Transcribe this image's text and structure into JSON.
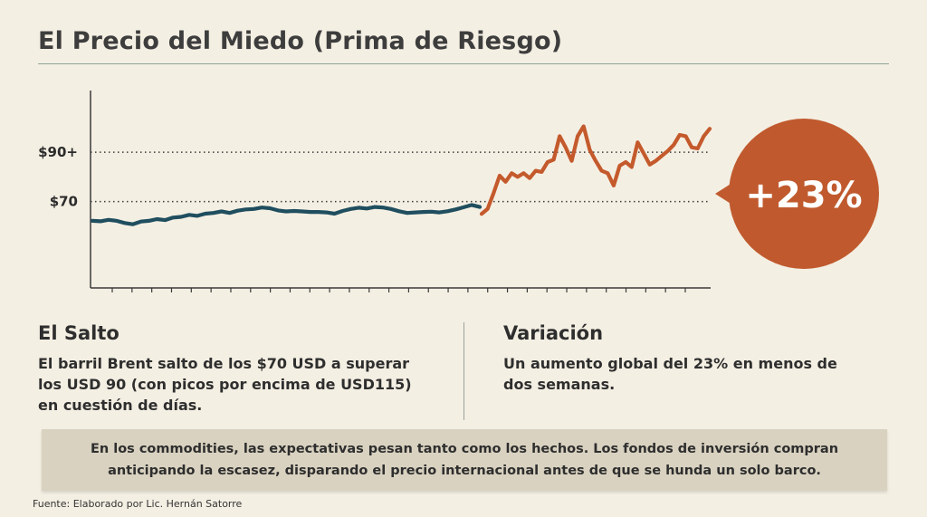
{
  "title": "El Precio del Miedo (Prima de Riesgo)",
  "chart_data": {
    "type": "line",
    "title": "El Precio del Miedo (Prima de Riesgo)",
    "xlabel": "",
    "ylabel": "",
    "ylim": [
      35,
      115
    ],
    "y_ticks": [
      {
        "value": 70,
        "label": "$70"
      },
      {
        "value": 90,
        "label": "$90+"
      }
    ],
    "x_tick_count": 30,
    "grid": "dotted at tick values",
    "series": [
      {
        "color": "#1f4e5f",
        "values": [
          62.2,
          62.0,
          62.6,
          62.2,
          61.3,
          60.8,
          61.9,
          62.2,
          62.9,
          62.5,
          63.5,
          63.8,
          64.6,
          64.2,
          65.1,
          65.4,
          66.0,
          65.4,
          66.3,
          66.8,
          67.0,
          67.6,
          67.3,
          66.4,
          66.0,
          66.2,
          66.0,
          65.8,
          65.8,
          65.6,
          65.1,
          66.2,
          67.0,
          67.5,
          67.2,
          67.8,
          67.6,
          67.0,
          66.1,
          65.4,
          65.6,
          65.8,
          65.9,
          65.6,
          66.1,
          66.8,
          67.7,
          68.6,
          67.8
        ]
      },
      {
        "color": "#c45a2c",
        "values": [
          65.0,
          67.0,
          73.5,
          80.5,
          78.0,
          81.5,
          80.0,
          81.5,
          79.5,
          82.5,
          82.0,
          86.0,
          87.0,
          96.5,
          92.0,
          86.5,
          96.5,
          100.5,
          91.0,
          86.5,
          82.5,
          81.5,
          76.5,
          84.5,
          86.0,
          84.0,
          94.0,
          89.5,
          85.0,
          86.5,
          88.5,
          90.5,
          93.0,
          97.0,
          96.5,
          92.0,
          91.5,
          96.5,
          99.5
        ]
      }
    ],
    "annotation": "+23%",
    "bubble_color": "#c05a2e"
  },
  "panels": {
    "left": {
      "title": "El Salto",
      "body": [
        "El barril Brent salto de los $70 USD a superar",
        "los USD 90 (con picos por encima de USD115)",
        "en cuestión de días."
      ]
    },
    "right": {
      "title": "Variación",
      "body": [
        "Un aumento global del 23% en menos de",
        "dos semanas."
      ]
    }
  },
  "note": [
    "En los commodities, las expectativas pesan tanto como los hechos. Los fondos de inversión compran",
    "anticipando la escasez, disparando el precio internacional antes de que se hunda un solo barco."
  ],
  "source": "Fuente: Elaborado por Lic. Hernán Satorre"
}
